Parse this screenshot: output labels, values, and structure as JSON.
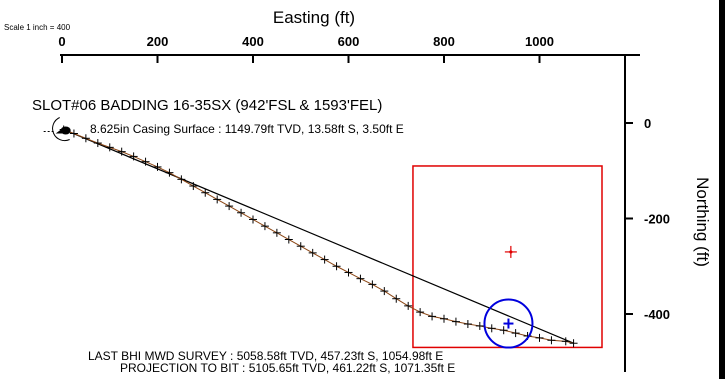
{
  "scale_label": "Scale 1 inch = 400",
  "chart_data": {
    "type": "scatter",
    "title": "SLOT#06 BADDING 16-35SX (942'FSL & 1593'FEL)",
    "xlabel": "Easting (ft)",
    "ylabel": "Northing (ft)",
    "x_ticks": [
      0,
      200,
      400,
      600,
      800,
      1000
    ],
    "y_ticks": [
      0,
      -200,
      -400
    ],
    "xlim": [
      -10,
      1090
    ],
    "ylim": [
      -490,
      0
    ],
    "colors": {
      "axis": "#000000",
      "target_box": "#e00000",
      "target_point": "#e00000",
      "bit_circle": "#0000dd",
      "survey_marker": "#000000",
      "survey_line": "#8b4513"
    },
    "series": [
      {
        "name": "",
        "kind": "wellpath_survey",
        "points": [
          [
            3.5,
            -13.6
          ],
          [
            25,
            -22
          ],
          [
            50,
            -32
          ],
          [
            75,
            -42
          ],
          [
            100,
            -51
          ],
          [
            125,
            -60
          ],
          [
            150,
            -70
          ],
          [
            175,
            -81
          ],
          [
            200,
            -92
          ],
          [
            225,
            -104
          ],
          [
            250,
            -118
          ],
          [
            275,
            -132
          ],
          [
            300,
            -146
          ],
          [
            325,
            -160
          ],
          [
            350,
            -174
          ],
          [
            375,
            -188
          ],
          [
            400,
            -202
          ],
          [
            425,
            -216
          ],
          [
            450,
            -230
          ],
          [
            475,
            -244
          ],
          [
            500,
            -258
          ],
          [
            525,
            -272
          ],
          [
            550,
            -286
          ],
          [
            575,
            -300
          ],
          [
            600,
            -313
          ],
          [
            625,
            -326
          ],
          [
            650,
            -338
          ],
          [
            675,
            -352
          ],
          [
            700,
            -368
          ],
          [
            725,
            -383
          ],
          [
            750,
            -396
          ],
          [
            775,
            -405
          ],
          [
            800,
            -410
          ],
          [
            825,
            -416
          ],
          [
            850,
            -421
          ],
          [
            875,
            -425
          ],
          [
            900,
            -430
          ],
          [
            925,
            -434
          ],
          [
            950,
            -440
          ],
          [
            975,
            -446
          ],
          [
            1000,
            -450
          ],
          [
            1025,
            -455
          ],
          [
            1054.98,
            -457.23
          ],
          [
            1071.35,
            -461.22
          ]
        ]
      },
      {
        "name": "",
        "kind": "straight_line",
        "points": [
          [
            3.5,
            -13.6
          ],
          [
            1071.35,
            -461.22
          ]
        ]
      }
    ],
    "target_box": {
      "x": [
        735,
        1160
      ],
      "y": [
        -90,
        -470
      ]
    },
    "target_point": [
      940,
      -270
    ],
    "bit_position": [
      935,
      -420
    ],
    "annotations": [
      {
        "text": "8.625in Casing Surface : 1149.79ft TVD, 13.58ft S, 3.50ft E",
        "at": [
          3.5,
          -13.58
        ]
      },
      {
        "text": "LAST BHI MWD SURVEY : 5058.58ft TVD, 457.23ft S, 1054.98ft E",
        "at": [
          1054.98,
          -457.23
        ]
      },
      {
        "text": "PROJECTION TO BIT : 5105.65ft TVD, 461.22ft S, 1071.35ft E",
        "at": [
          1071.35,
          -461.22
        ]
      }
    ]
  }
}
